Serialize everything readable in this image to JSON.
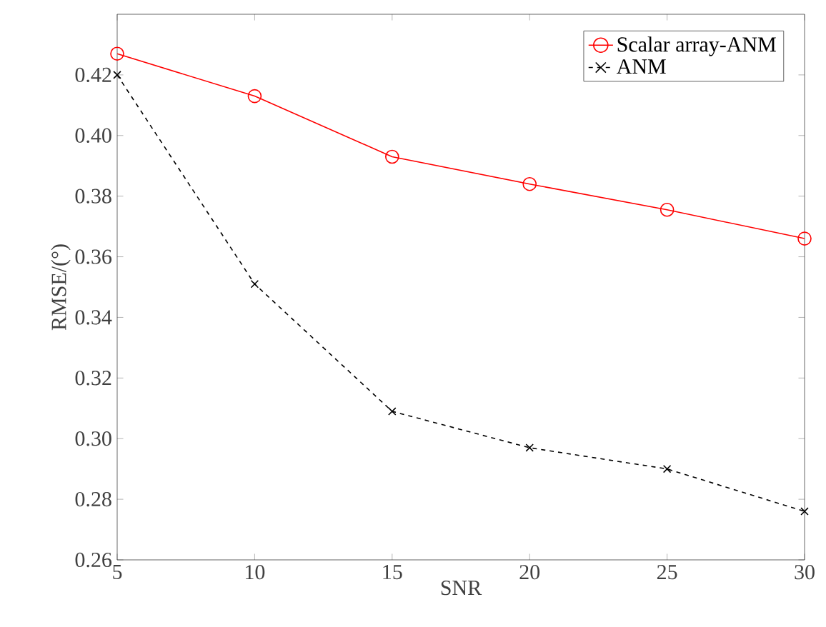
{
  "chart_data": {
    "type": "line",
    "xlabel": "SNR",
    "ylabel": "RMSE/(°)",
    "x": [
      5,
      10,
      15,
      20,
      25,
      30
    ],
    "series": [
      {
        "name": "Scalar array-ANM",
        "color": "#ff0000",
        "values": [
          0.427,
          0.413,
          0.393,
          0.384,
          0.3755,
          0.366
        ],
        "marker": "circle",
        "line_style": "solid"
      },
      {
        "name": "ANM",
        "color": "#000000",
        "values": [
          0.42,
          0.351,
          0.309,
          0.297,
          0.29,
          0.276
        ],
        "marker": "cross",
        "line_style": "dashed"
      }
    ],
    "xlim": [
      5,
      30
    ],
    "xticks": [
      5,
      10,
      15,
      20,
      25,
      30
    ],
    "ylim": [
      0.26,
      0.44
    ],
    "yticks": [
      0.26,
      0.28,
      {
        "value": 0.3,
        "label": "0.30"
      },
      0.32,
      0.34,
      0.36,
      0.38,
      {
        "value": 0.4,
        "label": "0.40"
      },
      0.42
    ],
    "legend": "top right",
    "grid": false
  }
}
